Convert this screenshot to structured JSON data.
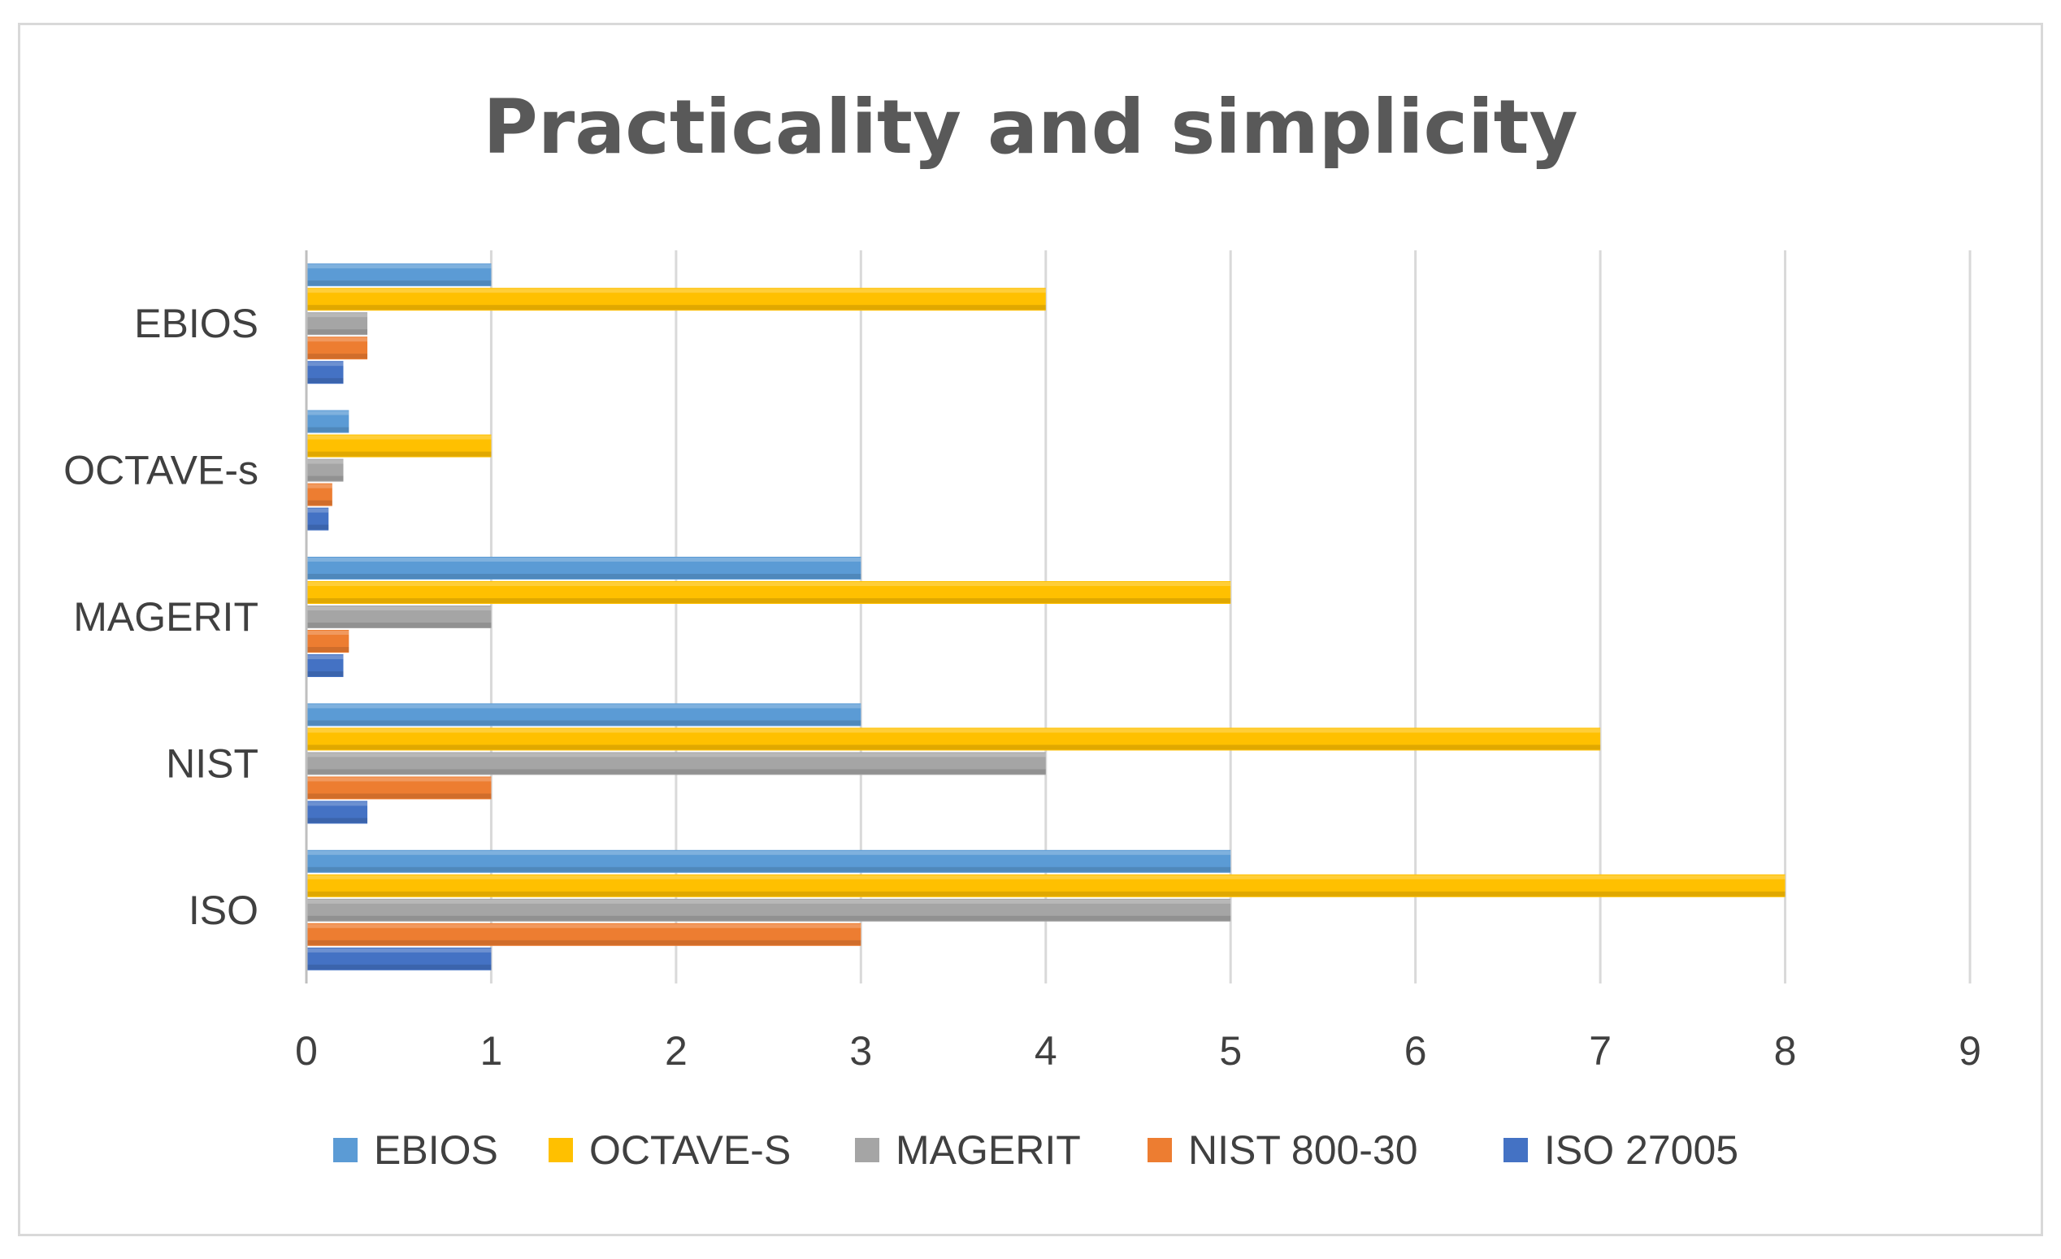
{
  "chart_data": {
    "type": "bar",
    "orientation": "horizontal",
    "title": "Practicality and simplicity",
    "xlabel": "",
    "ylabel": "",
    "categories": [
      "ISO",
      "NIST",
      "MAGERIT",
      "OCTAVE-s",
      "EBIOS"
    ],
    "xlim": [
      0,
      9
    ],
    "x_ticks": [
      "0",
      "1",
      "2",
      "3",
      "4",
      "5",
      "6",
      "7",
      "8",
      "9"
    ],
    "grid": "vertical",
    "legend_position": "bottom",
    "series": [
      {
        "name": "EBIOS",
        "color": "#5B9BD5",
        "values": [
          5,
          3,
          3,
          0.23,
          1
        ]
      },
      {
        "name": "OCTAVE-S",
        "color": "#FFC000",
        "values": [
          8,
          7,
          5,
          1,
          4
        ]
      },
      {
        "name": "MAGERIT",
        "color": "#A5A5A5",
        "values": [
          5,
          4,
          1,
          0.2,
          0.33
        ]
      },
      {
        "name": "NIST 800-30",
        "color": "#ED7D31",
        "values": [
          3,
          1,
          0.23,
          0.14,
          0.33
        ]
      },
      {
        "name": "ISO 27005",
        "color": "#4472C4",
        "values": [
          1,
          0.33,
          0.2,
          0.12,
          0.2
        ]
      }
    ]
  }
}
